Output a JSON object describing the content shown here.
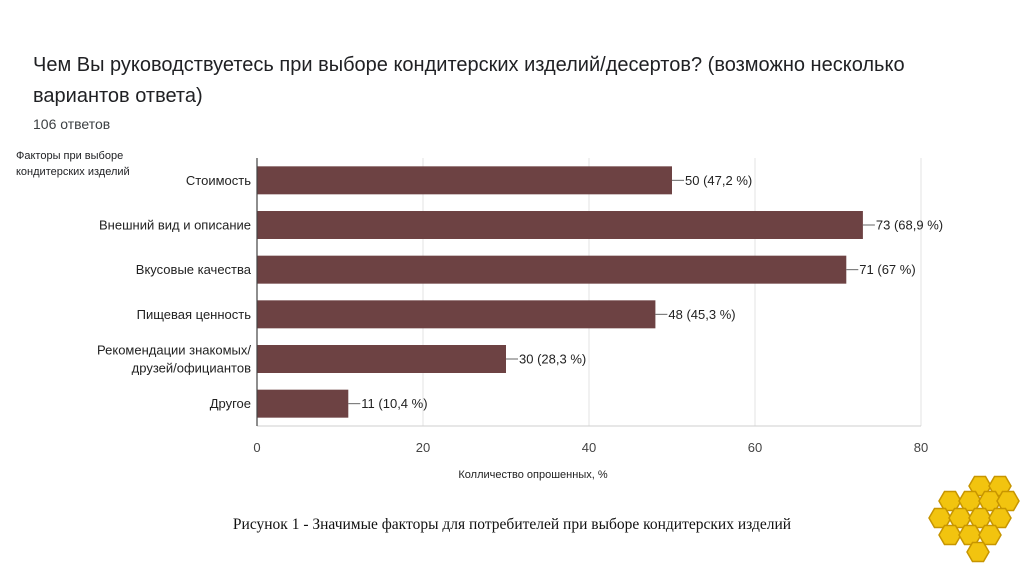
{
  "title": "Чем Вы руководствуетесь при выборе кондитерских изделий/десертов? (возможно несколько вариантов ответа)",
  "subtitle": "106 ответов",
  "caption": "Рисунок 1 - Значимые факторы для потребителей при выборе кондитерских изделий",
  "chart_data": {
    "type": "bar",
    "orientation": "horizontal",
    "ylabel": "Факторы при выборе кондитерских изделий",
    "xlabel": "Колличество опрошенных, %",
    "categories": [
      [
        "Стоимость"
      ],
      [
        "Внешний вид и описание"
      ],
      [
        "Вкусовые качества"
      ],
      [
        "Пищевая ценность"
      ],
      [
        "Рекомендации знакомых/",
        "друзей/официантов"
      ],
      [
        "Другое"
      ]
    ],
    "values": [
      50,
      73,
      71,
      48,
      30,
      11
    ],
    "data_labels": [
      "50 (47,2 %)",
      "73 (68,9 %)",
      "71 (67 %)",
      "48 (45,3 %)",
      "30 (28,3 %)",
      "11 (10,4 %)"
    ],
    "xlim": [
      0,
      80
    ],
    "xticks": [
      "0",
      "20",
      "40",
      "60",
      "80"
    ],
    "grid": true,
    "bar_color": "#6d4243"
  }
}
